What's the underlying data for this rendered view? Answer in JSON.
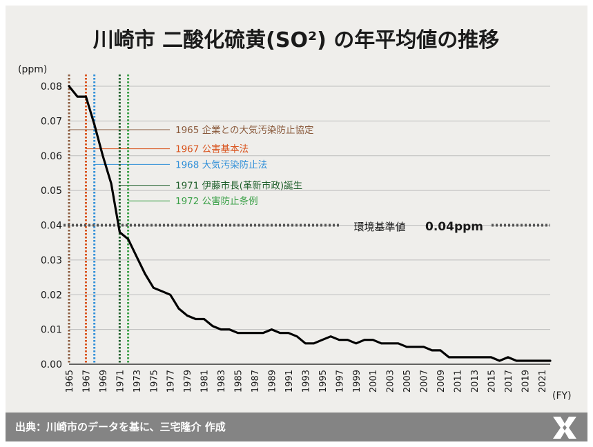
{
  "chart_data": {
    "type": "line",
    "title": "川崎市  二酸化硫黄(SO²) の年平均値の推移",
    "ylabel": "(ppm)",
    "xlabel": "(FY)",
    "ylim": [
      0,
      0.08
    ],
    "yticks": [
      "0.00",
      "0.01",
      "0.02",
      "0.03",
      "0.04",
      "0.05",
      "0.06",
      "0.07",
      "0.08"
    ],
    "xlim": [
      1965,
      2022
    ],
    "xticks": [
      1965,
      1967,
      1969,
      1971,
      1973,
      1975,
      1977,
      1979,
      1981,
      1983,
      1985,
      1987,
      1989,
      1991,
      1993,
      1995,
      1997,
      1999,
      2001,
      2003,
      2005,
      2007,
      2009,
      2011,
      2013,
      2015,
      2017,
      2019,
      2021
    ],
    "grid": true,
    "series": [
      {
        "color": "#000000",
        "x": [
          1965,
          1966,
          1967,
          1968,
          1969,
          1970,
          1971,
          1972,
          1973,
          1974,
          1975,
          1976,
          1977,
          1978,
          1979,
          1980,
          1981,
          1982,
          1983,
          1984,
          1985,
          1986,
          1987,
          1988,
          1989,
          1990,
          1991,
          1992,
          1993,
          1994,
          1995,
          1996,
          1997,
          1998,
          1999,
          2000,
          2001,
          2002,
          2003,
          2004,
          2005,
          2006,
          2007,
          2008,
          2009,
          2010,
          2011,
          2012,
          2013,
          2014,
          2015,
          2016,
          2017,
          2018,
          2019,
          2020,
          2021,
          2022
        ],
        "y": [
          0.08,
          0.077,
          0.077,
          0.069,
          0.06,
          0.052,
          0.038,
          0.036,
          0.031,
          0.026,
          0.022,
          0.021,
          0.02,
          0.016,
          0.014,
          0.013,
          0.013,
          0.011,
          0.01,
          0.01,
          0.009,
          0.009,
          0.009,
          0.009,
          0.01,
          0.009,
          0.009,
          0.008,
          0.006,
          0.006,
          0.007,
          0.008,
          0.007,
          0.007,
          0.006,
          0.007,
          0.007,
          0.006,
          0.006,
          0.006,
          0.005,
          0.005,
          0.005,
          0.004,
          0.004,
          0.002,
          0.002,
          0.002,
          0.002,
          0.002,
          0.002,
          0.001,
          0.002,
          0.001,
          0.001,
          0.001,
          0.001,
          0.001
        ]
      }
    ],
    "events": [
      {
        "year": 1965,
        "label": "1965 企業との大気汚染防止協定",
        "color": "#8a5a3c",
        "label_y": 0.0675
      },
      {
        "year": 1967,
        "label": "1967 公害基本法",
        "color": "#d9541e",
        "label_y": 0.062
      },
      {
        "year": 1968,
        "label": "1968 大気汚染防止法",
        "color": "#2f8fd8",
        "label_y": 0.0575
      },
      {
        "year": 1971,
        "label": "1971 伊藤市長(革新市政)誕生",
        "color": "#1f5f2b",
        "label_y": 0.0515
      },
      {
        "year": 1972,
        "label": "1972 公害防止条例",
        "color": "#3aa047",
        "label_y": 0.047
      }
    ],
    "threshold": {
      "value": 0.04,
      "label": "環境基準値",
      "value_label": "0.04ppm",
      "color": "#555555"
    }
  },
  "footer": {
    "source": "出典：川崎市のデータを基に、三宅隆介 作成",
    "logo_icon": "kawasaki-logo-icon"
  }
}
